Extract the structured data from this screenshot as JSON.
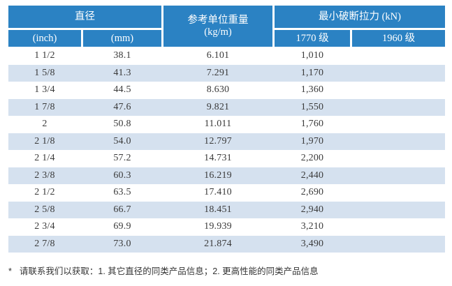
{
  "table": {
    "header": {
      "diameter": "直径",
      "inch": "(inch)",
      "mm": "(mm)",
      "weight_line1": "参考单位重量",
      "weight_line2": "(kg/m)",
      "breaking_force": "最小破断拉力 (kN)",
      "grade_1770": "1770 级",
      "grade_1960": "1960 级"
    },
    "rows": [
      {
        "inch": "1 1/2",
        "mm": "38.1",
        "kg_per_m": "6.101",
        "kn_1770": "1,010",
        "kn_1960": ""
      },
      {
        "inch": "1 5/8",
        "mm": "41.3",
        "kg_per_m": "7.291",
        "kn_1770": "1,170",
        "kn_1960": ""
      },
      {
        "inch": "1 3/4",
        "mm": "44.5",
        "kg_per_m": "8.630",
        "kn_1770": "1,360",
        "kn_1960": ""
      },
      {
        "inch": "1 7/8",
        "mm": "47.6",
        "kg_per_m": "9.821",
        "kn_1770": "1,550",
        "kn_1960": ""
      },
      {
        "inch": "2",
        "mm": "50.8",
        "kg_per_m": "11.011",
        "kn_1770": "1,760",
        "kn_1960": ""
      },
      {
        "inch": "2 1/8",
        "mm": "54.0",
        "kg_per_m": "12.797",
        "kn_1770": "1,970",
        "kn_1960": ""
      },
      {
        "inch": "2 1/4",
        "mm": "57.2",
        "kg_per_m": "14.731",
        "kn_1770": "2,200",
        "kn_1960": ""
      },
      {
        "inch": "2 3/8",
        "mm": "60.3",
        "kg_per_m": "16.219",
        "kn_1770": "2,440",
        "kn_1960": ""
      },
      {
        "inch": "2 1/2",
        "mm": "63.5",
        "kg_per_m": "17.410",
        "kn_1770": "2,690",
        "kn_1960": ""
      },
      {
        "inch": "2 5/8",
        "mm": "66.7",
        "kg_per_m": "18.451",
        "kn_1770": "2,940",
        "kn_1960": ""
      },
      {
        "inch": "2 3/4",
        "mm": "69.9",
        "kg_per_m": "19.939",
        "kn_1770": "3,210",
        "kn_1960": ""
      },
      {
        "inch": "2 7/8",
        "mm": "73.0",
        "kg_per_m": "21.874",
        "kn_1770": "3,490",
        "kn_1960": ""
      }
    ]
  },
  "footer": {
    "marker": "*",
    "text": "请联系我们以获取：1. 其它直径的同类产品信息；2. 更高性能的同类产品信息"
  },
  "colors": {
    "header_bg": "#2B82C3",
    "header_text": "#FFFFFF",
    "row_alt_bg": "#D5E1EF",
    "body_text": "#3A3A3A"
  }
}
